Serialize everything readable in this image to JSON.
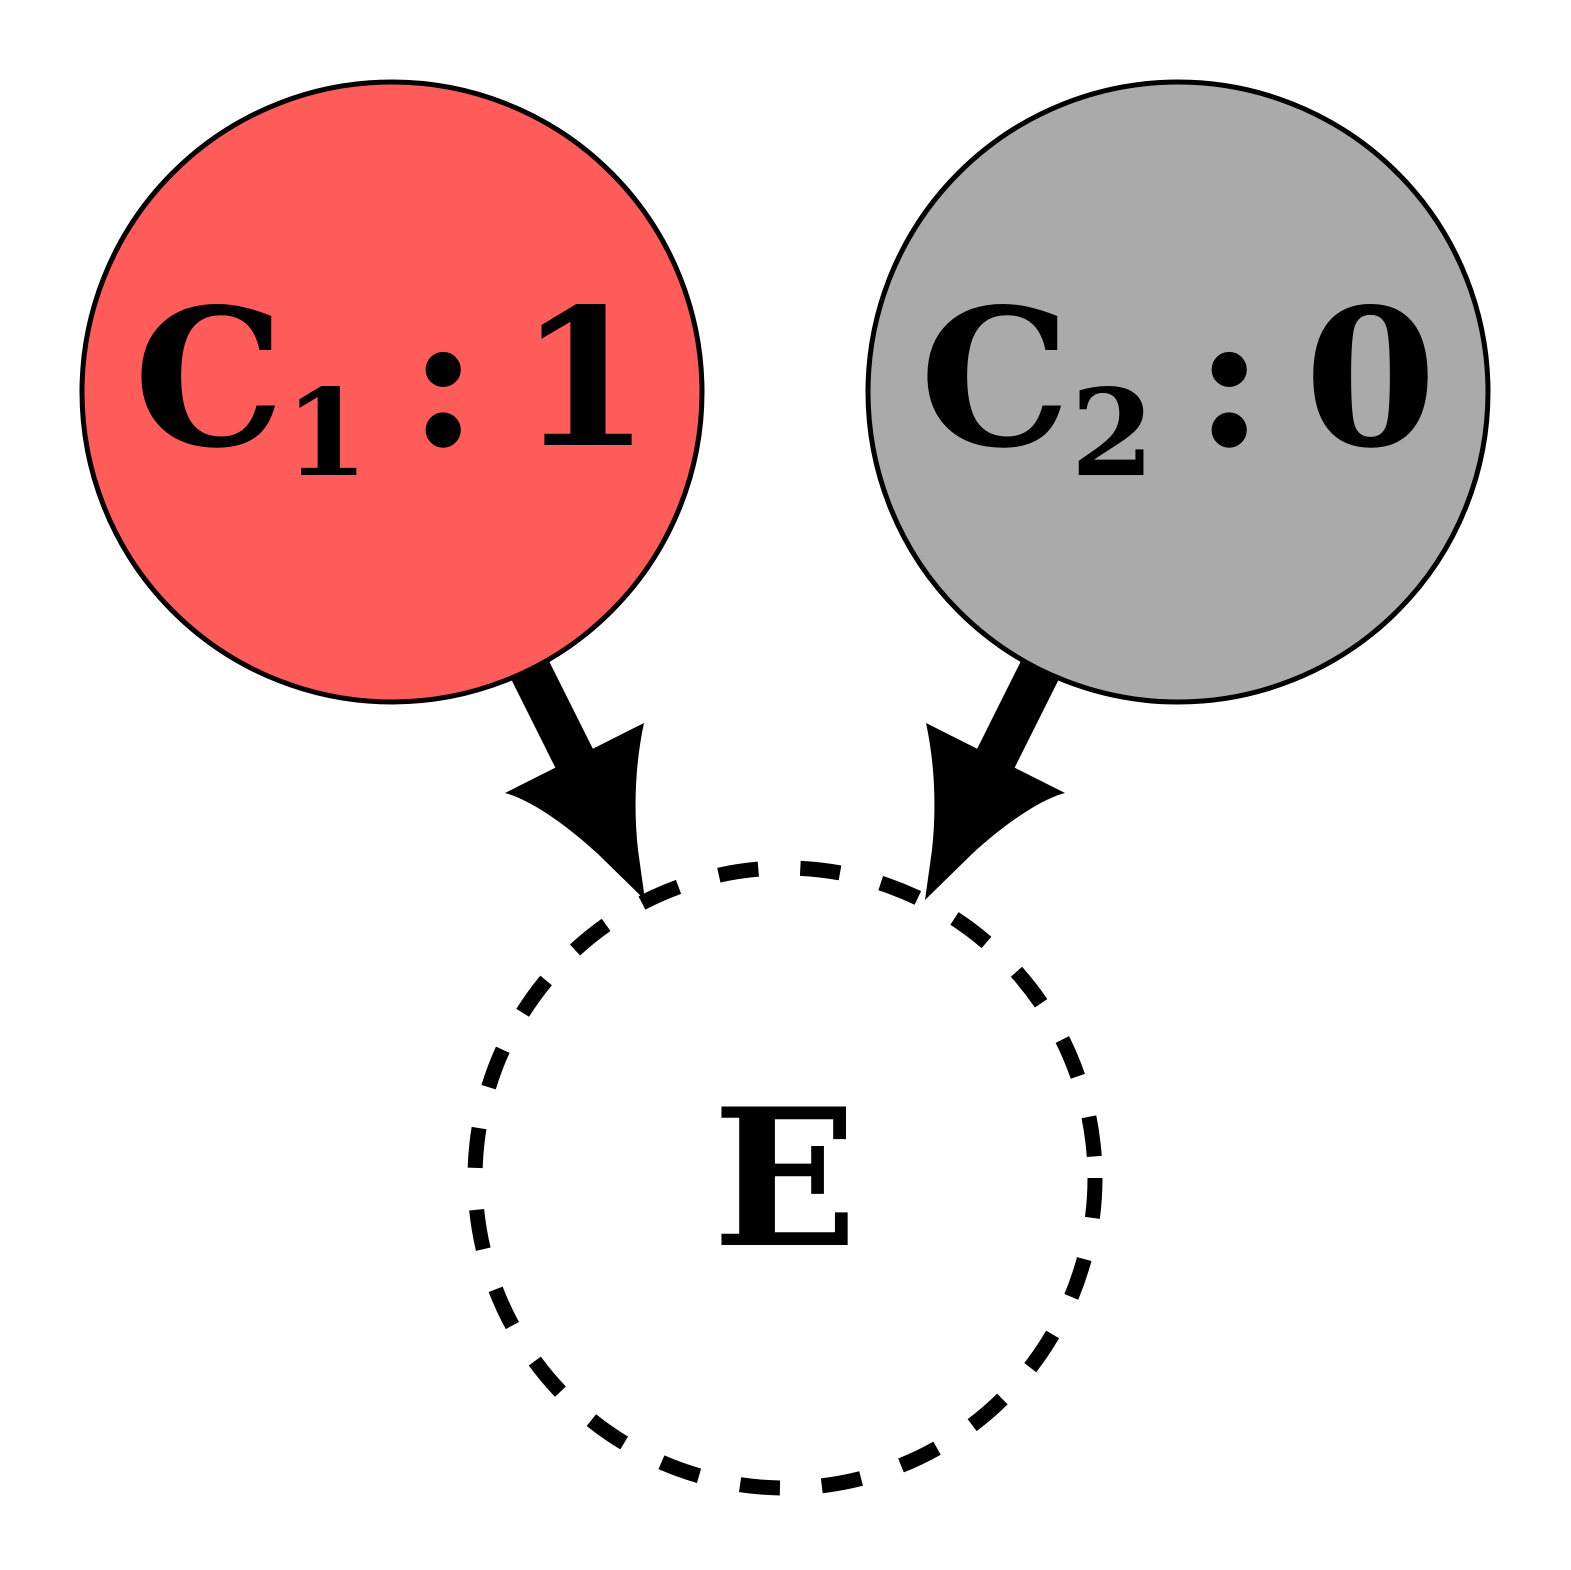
{
  "nodes": {
    "c1": {
      "name": "C",
      "subscript": "1",
      "separator": ":",
      "value": "1",
      "fill": "#ff5c5a"
    },
    "c2": {
      "name": "C",
      "subscript": "2",
      "separator": ":",
      "value": "0",
      "fill": "#aaaaaa"
    },
    "e": {
      "label": "E"
    }
  },
  "edges": [
    {
      "from": "c1",
      "to": "e"
    },
    {
      "from": "c2",
      "to": "e"
    }
  ],
  "colors": {
    "outline": "#000000",
    "background": "#ffffff"
  }
}
